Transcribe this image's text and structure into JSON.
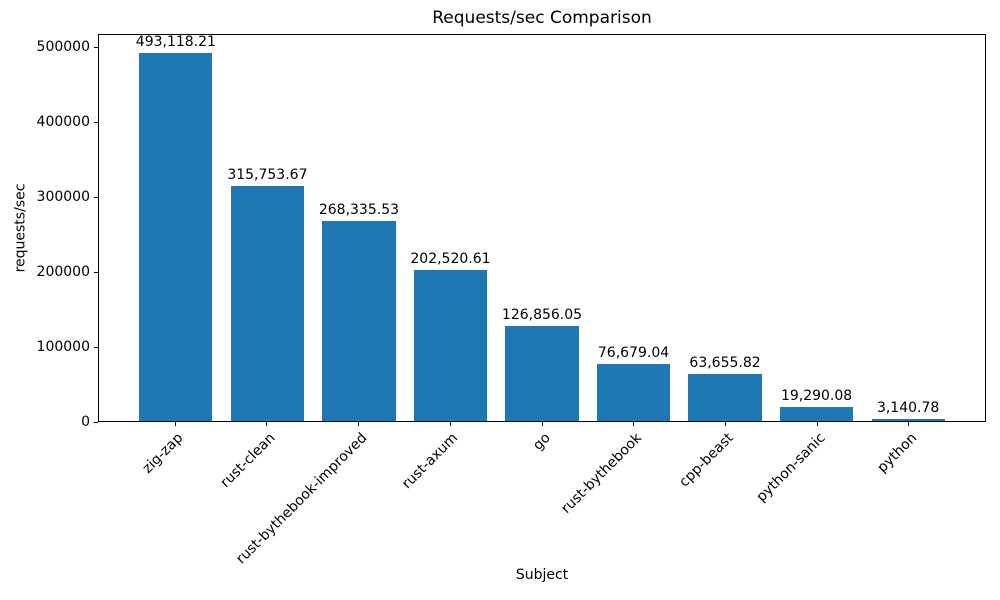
{
  "chart_data": {
    "type": "bar",
    "title": "Requests/sec Comparison",
    "xlabel": "Subject",
    "ylabel": "requests/sec",
    "categories": [
      "zig-zap",
      "rust-clean",
      "rust-bythebook-improved",
      "rust-axum",
      "go",
      "rust-bythebook",
      "cpp-beast",
      "python-sanic",
      "python"
    ],
    "values": [
      493118.21,
      315753.67,
      268335.53,
      202520.61,
      126856.05,
      76679.04,
      63655.82,
      19290.08,
      3140.78
    ],
    "value_labels": [
      "493,118.21",
      "315,753.67",
      "268,335.53",
      "202,520.61",
      "126,856.05",
      "76,679.04",
      "63,655.82",
      "19,290.08",
      "3,140.78"
    ],
    "yticks": [
      0,
      100000,
      200000,
      300000,
      400000,
      500000
    ],
    "ytick_labels": [
      "0",
      "100000",
      "200000",
      "300000",
      "400000",
      "500000"
    ],
    "ylim": [
      0,
      517774
    ],
    "bar_color": "#1f77b4",
    "bar_width_fraction": 0.8,
    "x_margin_fraction": 0.05,
    "grid": false,
    "legend": "none",
    "xtick_rotation_deg": 45
  }
}
